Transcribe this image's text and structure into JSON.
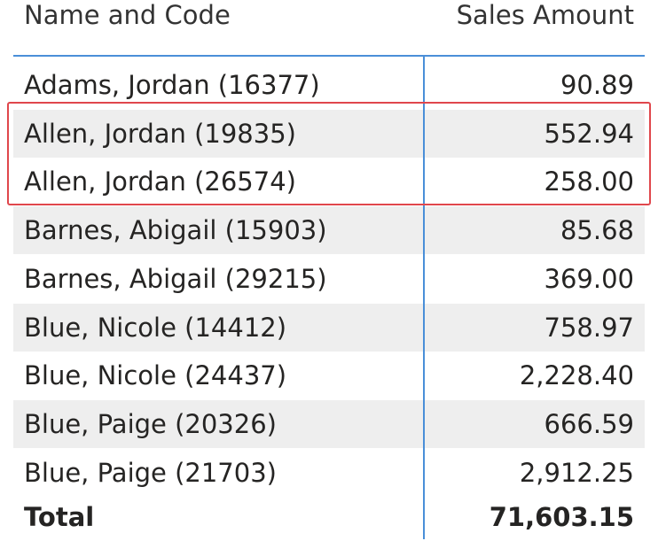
{
  "table": {
    "columns": [
      "Name and Code",
      "Sales Amount"
    ],
    "rows": [
      [
        "Adams, Jordan (16377)",
        "90.89"
      ],
      [
        "Allen, Jordan (19835)",
        "552.94"
      ],
      [
        "Allen, Jordan (26574)",
        "258.00"
      ],
      [
        "Barnes, Abigail (15903)",
        "85.68"
      ],
      [
        "Barnes, Abigail (29215)",
        "369.00"
      ],
      [
        "Blue, Nicole (14412)",
        "758.97"
      ],
      [
        "Blue, Nicole (24437)",
        "2,228.40"
      ],
      [
        "Blue, Paige (20326)",
        "666.59"
      ],
      [
        "Blue, Paige (21703)",
        "2,912.25"
      ]
    ],
    "total": [
      "Total",
      "71,603.15"
    ]
  }
}
